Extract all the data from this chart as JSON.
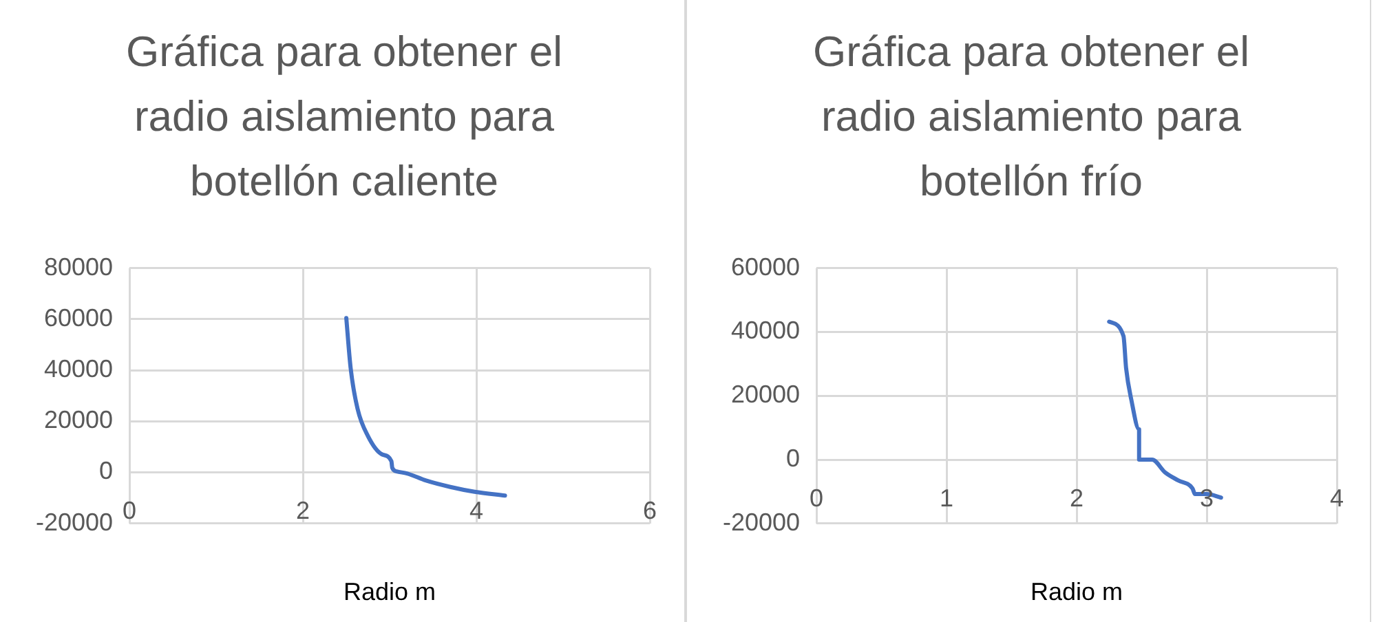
{
  "chart_data": [
    {
      "type": "line",
      "title": "Gráfica para obtener el radio aislamiento para botellón caliente",
      "xlabel": "Radio m",
      "marker": "none",
      "grid": true,
      "series": [
        {
          "color": "#4472c4",
          "x": [
            2.5,
            2.55,
            2.63,
            2.75,
            2.91,
            3.02,
            3.03,
            3.08,
            3.2,
            3.42,
            3.7,
            3.98,
            4.33
          ],
          "values": [
            60400,
            40900,
            24900,
            14200,
            7100,
            4400,
            1800,
            400,
            -400,
            -3200,
            -5700,
            -7600,
            -9100
          ]
        }
      ],
      "xlim": [
        0,
        6
      ],
      "xticks": [
        0,
        2,
        4,
        6
      ],
      "ylim": [
        -20000,
        80000
      ],
      "yticks": [
        -20000,
        0,
        20000,
        40000,
        60000,
        80000
      ]
    },
    {
      "type": "line",
      "title": "Gráfica para obtener el radio aislamiento para botellón frío",
      "xlabel": "Radio m",
      "marker": "none",
      "grid": true,
      "series": [
        {
          "color": "#4472c4",
          "x": [
            2.25,
            2.36,
            2.38,
            2.42,
            2.48,
            2.48,
            2.58,
            2.68,
            2.78,
            2.89,
            2.91,
            3.0,
            3.11
          ],
          "values": [
            43200,
            38700,
            28700,
            18800,
            9500,
            0,
            0,
            -4000,
            -6500,
            -9000,
            -10800,
            -10800,
            -11900
          ]
        }
      ],
      "xlim": [
        0,
        4
      ],
      "xticks": [
        0,
        1,
        2,
        3,
        4
      ],
      "ylim": [
        -20000,
        60000
      ],
      "yticks": [
        -20000,
        0,
        20000,
        40000,
        60000
      ]
    }
  ]
}
